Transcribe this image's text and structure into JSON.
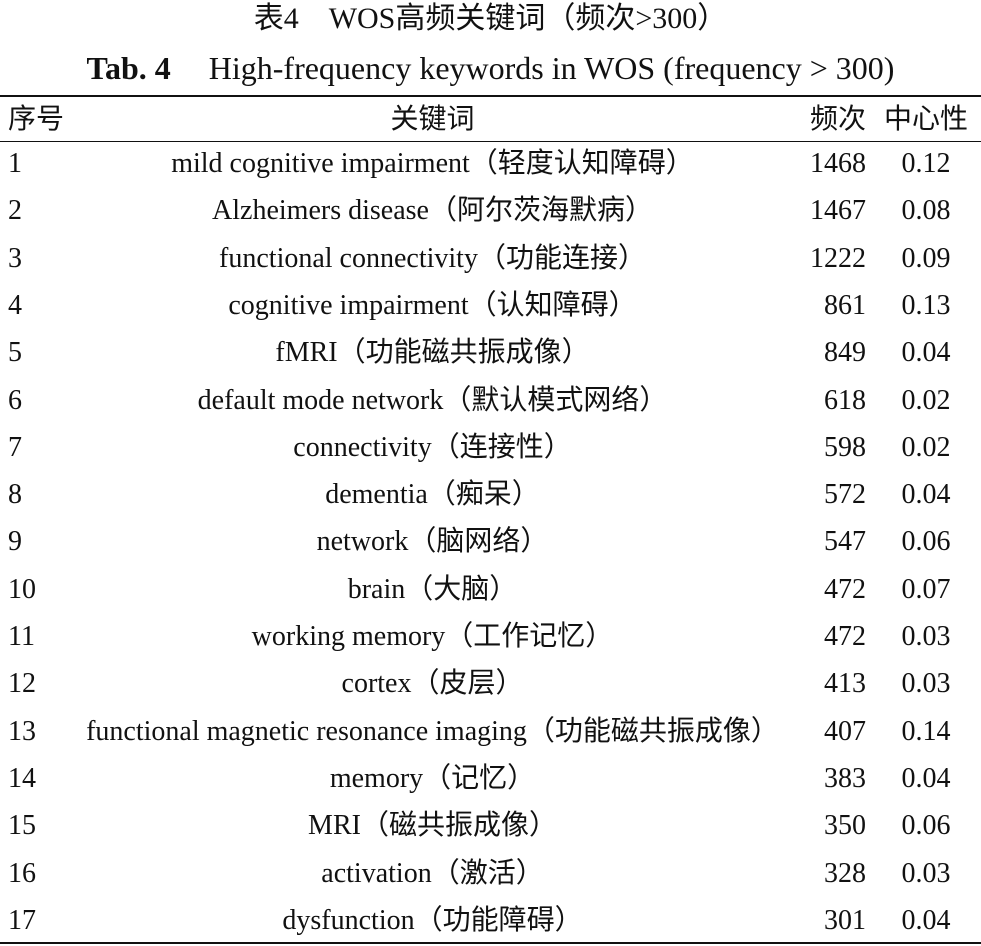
{
  "header": {
    "title_cn": "表4　WOS高频关键词（频次>300）",
    "title_en_label": "Tab. 4",
    "title_en": "High-frequency keywords in WOS (frequency > 300)"
  },
  "table": {
    "columns": [
      "序号",
      "关键词",
      "频次",
      "中心性"
    ],
    "rows": [
      [
        "1",
        "mild cognitive impairment（轻度认知障碍）",
        "1468",
        "0.12"
      ],
      [
        "2",
        "Alzheimers disease（阿尔茨海默病）",
        "1467",
        "0.08"
      ],
      [
        "3",
        "functional connectivity（功能连接）",
        "1222",
        "0.09"
      ],
      [
        "4",
        "cognitive impairment（认知障碍）",
        "861",
        "0.13"
      ],
      [
        "5",
        "fMRI（功能磁共振成像）",
        "849",
        "0.04"
      ],
      [
        "6",
        "default mode network（默认模式网络）",
        "618",
        "0.02"
      ],
      [
        "7",
        "connectivity（连接性）",
        "598",
        "0.02"
      ],
      [
        "8",
        "dementia（痴呆）",
        "572",
        "0.04"
      ],
      [
        "9",
        "network（脑网络）",
        "547",
        "0.06"
      ],
      [
        "10",
        "brain（大脑）",
        "472",
        "0.07"
      ],
      [
        "11",
        "working memory（工作记忆）",
        "472",
        "0.03"
      ],
      [
        "12",
        "cortex（皮层）",
        "413",
        "0.03"
      ],
      [
        "13",
        "functional magnetic resonance imaging（功能磁共振成像）",
        "407",
        "0.14"
      ],
      [
        "14",
        "memory（记忆）",
        "383",
        "0.04"
      ],
      [
        "15",
        "MRI（磁共振成像）",
        "350",
        "0.06"
      ],
      [
        "16",
        "activation（激活）",
        "328",
        "0.03"
      ],
      [
        "17",
        "dysfunction（功能障碍）",
        "301",
        "0.04"
      ]
    ]
  }
}
